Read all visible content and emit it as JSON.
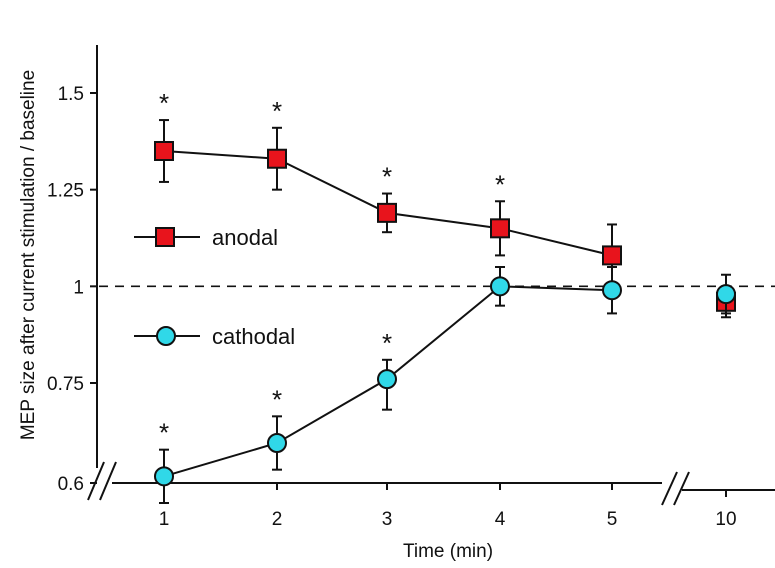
{
  "chart_data": {
    "type": "line",
    "xlabel": "Time (min)",
    "ylabel": "MEP size after current stimulation / baseline",
    "x_ticks": [
      "1",
      "2",
      "3",
      "4",
      "5",
      "10"
    ],
    "y_ticks": [
      "0.6",
      "0.75",
      "1",
      "1.25",
      "1.5"
    ],
    "ylim": [
      0.6,
      1.5
    ],
    "reference_line": 1.0,
    "series": [
      {
        "name": "anodal",
        "marker": "square",
        "color": "#e8141c",
        "x": [
          1,
          2,
          3,
          4,
          5,
          10
        ],
        "y": [
          1.35,
          1.33,
          1.19,
          1.15,
          1.08,
          0.96
        ],
        "err": [
          0.08,
          0.08,
          0.05,
          0.07,
          0.08,
          0.04
        ],
        "significant": [
          true,
          true,
          true,
          true,
          false,
          false
        ],
        "connect_last": false
      },
      {
        "name": "cathodal",
        "marker": "circle",
        "color": "#30d8e8",
        "x": [
          1,
          2,
          3,
          4,
          5,
          10
        ],
        "y": [
          0.61,
          0.66,
          0.76,
          1.0,
          0.99,
          0.98
        ],
        "err": [
          0.04,
          0.04,
          0.05,
          0.05,
          0.06,
          0.05
        ],
        "significant": [
          true,
          true,
          true,
          false,
          false,
          false
        ],
        "connect_last": false
      }
    ],
    "significance_marker": "*",
    "legend_position": "left-middle"
  }
}
